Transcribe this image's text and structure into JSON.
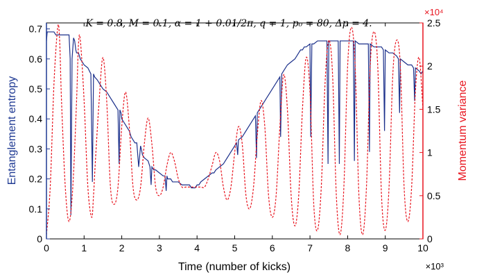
{
  "chart_data": {
    "type": "line",
    "title": "K = 0.8, M = 0.1, α = 1 + 0.01/2π, q = 1, p₀ = 80, Δp = 4.",
    "xlabel": "Time (number of kicks)",
    "x_exponent_label": "×10³",
    "ylabel_left": "Entanglement entropy",
    "ylabel_right": "Momentum variance",
    "y_right_exponent_label": "×10⁴",
    "xlim": [
      0,
      10
    ],
    "ylim_left": [
      0,
      0.72
    ],
    "ylim_right": [
      0,
      2.5
    ],
    "x_ticks": [
      "0",
      "1",
      "2",
      "3",
      "4",
      "5",
      "6",
      "7",
      "8",
      "9",
      "10"
    ],
    "y_left_ticks": [
      "0",
      "0.1",
      "0.2",
      "0.3",
      "0.4",
      "0.5",
      "0.6",
      "0.7"
    ],
    "y_right_ticks": [
      "0",
      "0.5",
      "1",
      "1.5",
      "2",
      "2.5"
    ],
    "grid": false,
    "colors": {
      "left_axis": "#1f3a93",
      "right_axis": "#e8141e",
      "entropy_line": "#1a2f8a",
      "variance_line": "#e8141e"
    },
    "series": [
      {
        "name": "Entanglement entropy",
        "axis": "left",
        "style": "solid",
        "x": [
          0,
          0.02,
          0.05,
          0.2,
          0.25,
          0.5,
          0.6,
          0.63,
          0.65,
          0.68,
          0.72,
          0.75,
          0.78,
          0.8,
          0.85,
          0.9,
          1.0,
          1.1,
          1.18,
          1.22,
          1.25,
          1.28,
          1.35,
          1.4,
          1.5,
          1.6,
          1.65,
          1.8,
          1.9,
          1.93,
          1.95,
          1.98,
          2.0,
          2.1,
          2.2,
          2.25,
          2.3,
          2.35,
          2.4,
          2.45,
          2.5,
          2.52,
          2.55,
          2.6,
          2.7,
          2.75,
          2.78,
          2.8,
          2.85,
          2.9,
          3.0,
          3.1,
          3.15,
          3.18,
          3.2,
          3.22,
          3.3,
          3.35,
          3.4,
          3.5,
          3.6,
          3.65,
          3.7,
          3.8,
          3.85,
          3.9,
          3.95,
          4.0,
          4.05,
          4.1,
          4.2,
          4.3,
          4.4,
          4.45,
          4.5,
          4.6,
          4.7,
          4.75,
          4.8,
          4.85,
          4.9,
          4.95,
          5.0,
          5.05,
          5.08,
          5.1,
          5.2,
          5.3,
          5.4,
          5.5,
          5.55,
          5.58,
          5.6,
          5.7,
          5.8,
          5.85,
          5.9,
          6.0,
          6.1,
          6.2,
          6.22,
          6.25,
          6.3,
          6.4,
          6.5,
          6.6,
          6.65,
          6.7,
          6.75,
          6.8,
          6.85,
          6.9,
          7.0,
          7.02,
          7.05,
          7.1,
          7.2,
          7.3,
          7.4,
          7.45,
          7.48,
          7.5,
          7.6,
          7.7,
          7.75,
          7.78,
          7.8,
          7.9,
          8.0,
          8.1,
          8.15,
          8.18,
          8.2,
          8.3,
          8.4,
          8.5,
          8.55,
          8.58,
          8.6,
          8.7,
          8.8,
          8.9,
          8.95,
          8.98,
          9.0,
          9.1,
          9.2,
          9.3,
          9.35,
          9.38,
          9.4,
          9.5,
          9.6,
          9.7,
          9.75,
          9.78,
          9.8,
          9.9,
          9.95,
          10.0
        ],
        "y": [
          0.66,
          0.69,
          0.69,
          0.69,
          0.68,
          0.68,
          0.68,
          0.6,
          0.08,
          0.6,
          0.67,
          0.66,
          0.63,
          0.62,
          0.62,
          0.6,
          0.58,
          0.57,
          0.55,
          0.19,
          0.55,
          0.54,
          0.53,
          0.52,
          0.5,
          0.49,
          0.48,
          0.45,
          0.43,
          0.25,
          0.43,
          0.42,
          0.4,
          0.38,
          0.36,
          0.34,
          0.33,
          0.32,
          0.32,
          0.24,
          0.31,
          0.3,
          0.28,
          0.27,
          0.26,
          0.24,
          0.18,
          0.24,
          0.23,
          0.23,
          0.22,
          0.21,
          0.21,
          0.16,
          0.21,
          0.2,
          0.2,
          0.19,
          0.19,
          0.19,
          0.18,
          0.18,
          0.18,
          0.18,
          0.17,
          0.17,
          0.17,
          0.18,
          0.18,
          0.19,
          0.2,
          0.21,
          0.22,
          0.22,
          0.23,
          0.24,
          0.25,
          0.26,
          0.27,
          0.28,
          0.29,
          0.3,
          0.31,
          0.32,
          0.28,
          0.33,
          0.34,
          0.36,
          0.38,
          0.4,
          0.41,
          0.27,
          0.42,
          0.44,
          0.46,
          0.47,
          0.48,
          0.5,
          0.52,
          0.54,
          0.34,
          0.55,
          0.56,
          0.58,
          0.59,
          0.6,
          0.61,
          0.62,
          0.63,
          0.63,
          0.64,
          0.64,
          0.65,
          0.34,
          0.65,
          0.65,
          0.66,
          0.66,
          0.66,
          0.66,
          0.25,
          0.66,
          0.66,
          0.66,
          0.66,
          0.25,
          0.66,
          0.66,
          0.66,
          0.66,
          0.66,
          0.26,
          0.66,
          0.65,
          0.65,
          0.65,
          0.65,
          0.29,
          0.65,
          0.64,
          0.64,
          0.64,
          0.63,
          0.36,
          0.63,
          0.62,
          0.62,
          0.61,
          0.6,
          0.42,
          0.6,
          0.59,
          0.58,
          0.58,
          0.57,
          0.46,
          0.57,
          0.56,
          0.55,
          0.56
        ]
      },
      {
        "name": "Momentum variance",
        "axis": "right",
        "style": "dashed",
        "x": [
          0,
          0.1,
          0.2,
          0.3,
          0.35,
          0.4,
          0.5,
          0.6,
          0.7,
          0.8,
          0.85,
          0.9,
          1.0,
          1.1,
          1.2,
          1.25,
          1.3,
          1.4,
          1.5,
          1.6,
          1.7,
          1.8,
          1.9,
          2.0,
          2.1,
          2.2,
          2.3,
          2.4,
          2.5,
          2.6,
          2.7,
          2.8,
          2.9,
          3.0,
          3.1,
          3.2,
          3.3,
          3.4,
          3.5,
          3.6,
          3.7,
          3.8,
          3.9,
          4.0,
          4.1,
          4.2,
          4.3,
          4.4,
          4.5,
          4.6,
          4.7,
          4.8,
          4.9,
          5.0,
          5.1,
          5.2,
          5.3,
          5.4,
          5.5,
          5.6,
          5.7,
          5.8,
          5.9,
          6.0,
          6.1,
          6.2,
          6.3,
          6.4,
          6.5,
          6.6,
          6.7,
          6.8,
          6.9,
          7.0,
          7.1,
          7.2,
          7.3,
          7.4,
          7.5,
          7.6,
          7.7,
          7.8,
          7.9,
          8.0,
          8.1,
          8.2,
          8.3,
          8.4,
          8.5,
          8.6,
          8.7,
          8.8,
          8.9,
          9.0,
          9.1,
          9.2,
          9.3,
          9.4,
          9.5,
          9.6,
          9.7,
          9.8,
          9.9,
          10.0
        ],
        "y": [
          0.05,
          0.6,
          1.8,
          2.45,
          2.3,
          1.6,
          0.6,
          0.2,
          0.6,
          1.6,
          2.25,
          2.3,
          1.6,
          0.6,
          0.25,
          0.5,
          0.9,
          1.6,
          2.1,
          1.6,
          0.6,
          0.4,
          0.6,
          1.3,
          1.7,
          1.3,
          0.6,
          0.45,
          0.6,
          1.1,
          1.4,
          1.1,
          0.6,
          0.5,
          0.6,
          0.85,
          1.0,
          0.9,
          0.7,
          0.6,
          0.6,
          0.6,
          0.6,
          0.6,
          0.6,
          0.6,
          0.7,
          0.85,
          1.0,
          0.9,
          0.6,
          0.45,
          0.6,
          1.0,
          1.3,
          1.1,
          0.5,
          0.35,
          0.6,
          1.2,
          1.6,
          1.3,
          0.5,
          0.25,
          0.5,
          1.3,
          1.9,
          1.5,
          0.5,
          0.15,
          0.5,
          1.5,
          2.1,
          1.7,
          0.4,
          0.1,
          0.6,
          1.8,
          2.3,
          1.9,
          0.5,
          0.05,
          0.6,
          2.0,
          2.45,
          2.0,
          0.5,
          0.05,
          0.6,
          2.0,
          2.4,
          2.0,
          0.5,
          0.1,
          0.6,
          1.9,
          2.3,
          2.0,
          0.6,
          0.2,
          0.6,
          1.7,
          2.1,
          1.5
        ]
      }
    ]
  }
}
